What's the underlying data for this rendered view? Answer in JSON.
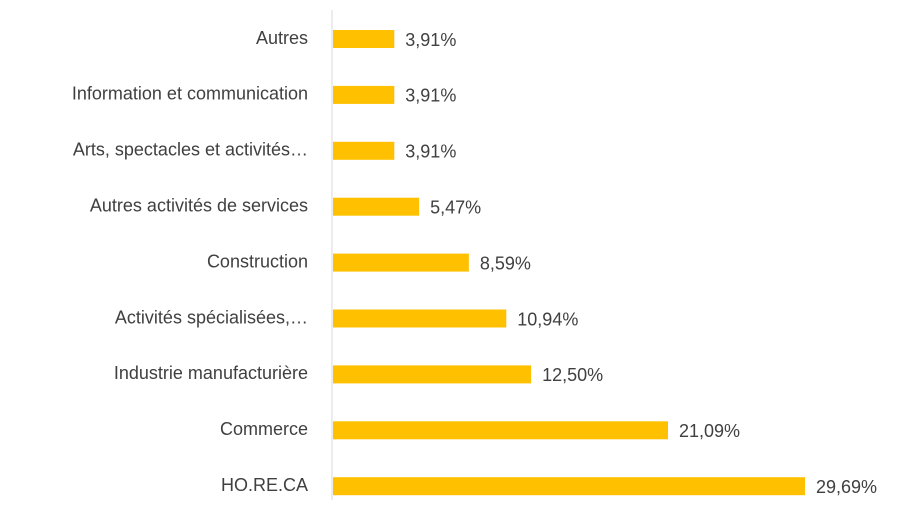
{
  "chart_data": {
    "type": "barh",
    "categories": [
      "Autres",
      "Information et communication",
      "Arts, spectacles et activités…",
      "Autres activités de services",
      "Construction",
      "Activités spécialisées,…",
      "Industrie manufacturière",
      "Commerce",
      "HO.RE.CA"
    ],
    "values": [
      3.91,
      3.91,
      3.91,
      5.47,
      8.59,
      10.94,
      12.5,
      21.09,
      29.69
    ],
    "value_labels": [
      "3,91%",
      "3,91%",
      "3,91%",
      "5,47%",
      "8,59%",
      "10,94%",
      "12,50%",
      "21,09%",
      "29,69%"
    ],
    "color": "#ffc000"
  }
}
